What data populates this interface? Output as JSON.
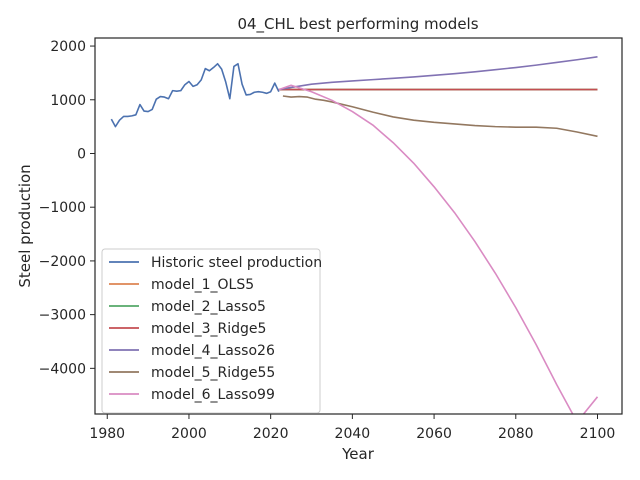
{
  "chart_data": {
    "type": "line",
    "title": "04_CHL best performing models",
    "xlabel": "Year",
    "ylabel": "Steel production",
    "xlim": [
      1977,
      2106
    ],
    "ylim": [
      -4850,
      2150
    ],
    "xticks": [
      1980,
      2000,
      2020,
      2040,
      2060,
      2080,
      2100
    ],
    "yticks": [
      2000,
      1000,
      0,
      -1000,
      -2000,
      -3000,
      -4000
    ],
    "ytick_labels": [
      "2000",
      "1000",
      "0",
      "−1000",
      "−2000",
      "−3000",
      "−4000"
    ],
    "grid": false,
    "legend_position": "lower-left",
    "series": [
      {
        "name": "Historic steel production",
        "color": "#4c72b0",
        "x": [
          1981,
          1982,
          1983,
          1984,
          1985,
          1986,
          1987,
          1988,
          1989,
          1990,
          1991,
          1992,
          1993,
          1994,
          1995,
          1996,
          1997,
          1998,
          1999,
          2000,
          2001,
          2002,
          2003,
          2004,
          2005,
          2006,
          2007,
          2008,
          2009,
          2010,
          2011,
          2012,
          2013,
          2014,
          2015,
          2016,
          2017,
          2018,
          2019,
          2020,
          2021,
          2022
        ],
        "y": [
          640,
          500,
          620,
          690,
          690,
          700,
          720,
          910,
          790,
          780,
          820,
          1010,
          1060,
          1050,
          1020,
          1170,
          1160,
          1170,
          1280,
          1340,
          1250,
          1280,
          1370,
          1580,
          1540,
          1600,
          1670,
          1570,
          1330,
          1020,
          1620,
          1670,
          1290,
          1090,
          1100,
          1140,
          1150,
          1140,
          1120,
          1150,
          1310,
          1150
        ]
      },
      {
        "name": "model_1_OLS5",
        "color": "#dd8452",
        "x": [
          2022,
          2100
        ],
        "y": [
          1190,
          1190
        ]
      },
      {
        "name": "model_2_Lasso5",
        "color": "#55a868",
        "x": [
          2022,
          2100
        ],
        "y": [
          1190,
          1190
        ]
      },
      {
        "name": "model_3_Ridge5",
        "color": "#c44e52",
        "x": [
          2022,
          2100
        ],
        "y": [
          1190,
          1190
        ]
      },
      {
        "name": "model_4_Lasso26",
        "color": "#8172b3",
        "x": [
          2022,
          2025,
          2030,
          2035,
          2040,
          2045,
          2050,
          2055,
          2060,
          2065,
          2070,
          2075,
          2080,
          2085,
          2090,
          2095,
          2100
        ],
        "y": [
          1190,
          1230,
          1290,
          1325,
          1350,
          1375,
          1400,
          1425,
          1455,
          1485,
          1520,
          1560,
          1600,
          1645,
          1695,
          1745,
          1800
        ]
      },
      {
        "name": "model_5_Ridge55",
        "color": "#937860",
        "x": [
          2023,
          2025,
          2027,
          2029,
          2031,
          2033,
          2035,
          2040,
          2045,
          2050,
          2055,
          2060,
          2065,
          2070,
          2075,
          2080,
          2085,
          2090,
          2095,
          2100
        ],
        "y": [
          1070,
          1050,
          1060,
          1050,
          1010,
          990,
          960,
          870,
          770,
          680,
          620,
          580,
          550,
          520,
          500,
          490,
          490,
          470,
          400,
          320
        ]
      },
      {
        "name": "model_6_Lasso99",
        "color": "#da8bc3",
        "x": [
          2022,
          2025,
          2030,
          2035,
          2040,
          2045,
          2050,
          2055,
          2060,
          2065,
          2070,
          2075,
          2080,
          2085,
          2090,
          2095,
          2100
        ],
        "y": [
          1190,
          1270,
          1150,
          990,
          780,
          530,
          200,
          -180,
          -620,
          -1100,
          -1640,
          -2230,
          -2870,
          -3560,
          -4300,
          -5000,
          -4530
        ]
      }
    ]
  }
}
